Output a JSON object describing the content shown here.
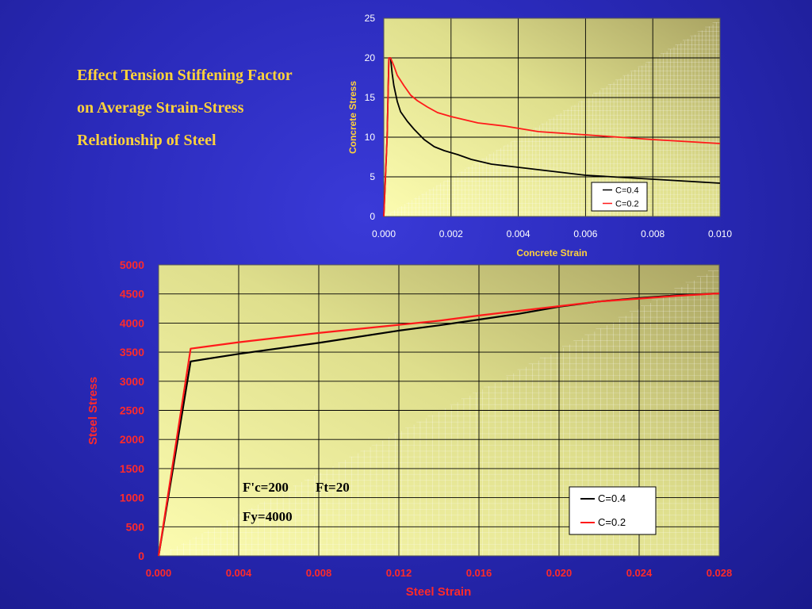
{
  "slide": {
    "title_lines": [
      "Effect Tension Stiffening Factor",
      "on Average Strain-Stress",
      "Relationship of Steel"
    ]
  },
  "chart_data": [
    {
      "type": "line",
      "xlabel": "Concrete Strain",
      "ylabel": "Concrete Stress",
      "xlim": [
        0,
        0.01
      ],
      "ylim": [
        0,
        25
      ],
      "x_ticks": [
        "0.000",
        "0.002",
        "0.004",
        "0.006",
        "0.008",
        "0.010"
      ],
      "y_ticks": [
        "0",
        "5",
        "10",
        "15",
        "20",
        "25"
      ],
      "grid": true,
      "legend_position": "bottom-right",
      "series": [
        {
          "name": "C=0.4",
          "color": "#000000",
          "points": [
            [
              0,
              0
            ],
            [
              0.0001,
              10
            ],
            [
              0.00015,
              20
            ],
            [
              0.0002,
              20
            ],
            [
              0.00025,
              18
            ],
            [
              0.0003,
              16.5
            ],
            [
              0.0004,
              14.5
            ],
            [
              0.0005,
              13.2
            ],
            [
              0.0007,
              12
            ],
            [
              0.0009,
              11
            ],
            [
              0.0012,
              9.7
            ],
            [
              0.0015,
              8.8
            ],
            [
              0.0018,
              8.3
            ],
            [
              0.0022,
              7.8
            ],
            [
              0.0026,
              7.2
            ],
            [
              0.0032,
              6.6
            ],
            [
              0.004,
              6.2
            ],
            [
              0.005,
              5.7
            ],
            [
              0.006,
              5.2
            ],
            [
              0.007,
              4.95
            ],
            [
              0.008,
              4.7
            ],
            [
              0.009,
              4.45
            ],
            [
              0.01,
              4.2
            ]
          ]
        },
        {
          "name": "C=0.2",
          "color": "#ff1a1a",
          "points": [
            [
              0,
              0
            ],
            [
              0.0001,
              10
            ],
            [
              0.00015,
              20
            ],
            [
              0.0002,
              20
            ],
            [
              0.0003,
              19
            ],
            [
              0.0004,
              17.8
            ],
            [
              0.0006,
              16.5
            ],
            [
              0.0008,
              15.3
            ],
            [
              0.001,
              14.6
            ],
            [
              0.0013,
              13.8
            ],
            [
              0.0016,
              13.1
            ],
            [
              0.002,
              12.6
            ],
            [
              0.0028,
              11.8
            ],
            [
              0.0036,
              11.4
            ],
            [
              0.0046,
              10.7
            ],
            [
              0.006,
              10.3
            ],
            [
              0.007,
              10
            ],
            [
              0.008,
              9.7
            ],
            [
              0.009,
              9.45
            ],
            [
              0.01,
              9.2
            ]
          ]
        }
      ]
    },
    {
      "type": "line",
      "xlabel": "Steel Strain",
      "ylabel": "Steel Stress",
      "xlim": [
        0,
        0.028
      ],
      "ylim": [
        0,
        5000
      ],
      "x_ticks": [
        "0.000",
        "0.004",
        "0.008",
        "0.012",
        "0.016",
        "0.020",
        "0.024",
        "0.028"
      ],
      "y_ticks": [
        "0",
        "500",
        "1000",
        "1500",
        "2000",
        "2500",
        "3000",
        "3500",
        "4000",
        "4500",
        "5000"
      ],
      "grid": true,
      "legend_position": "bottom-right",
      "annotations": [
        "F'c=200",
        "Ft=20",
        "Fy=4000"
      ],
      "series": [
        {
          "name": "C=0.4",
          "color": "#000000",
          "points": [
            [
              0,
              0
            ],
            [
              0.0016,
              3340
            ],
            [
              0.004,
              3470
            ],
            [
              0.008,
              3660
            ],
            [
              0.012,
              3870
            ],
            [
              0.014,
              3960
            ],
            [
              0.016,
              4060
            ],
            [
              0.018,
              4160
            ],
            [
              0.02,
              4280
            ],
            [
              0.022,
              4370
            ],
            [
              0.024,
              4430
            ],
            [
              0.026,
              4480
            ],
            [
              0.028,
              4510
            ]
          ]
        },
        {
          "name": "C=0.2",
          "color": "#ff1a1a",
          "points": [
            [
              0,
              0
            ],
            [
              0.0016,
              3560
            ],
            [
              0.004,
              3670
            ],
            [
              0.008,
              3830
            ],
            [
              0.012,
              3970
            ],
            [
              0.014,
              4040
            ],
            [
              0.016,
              4130
            ],
            [
              0.018,
              4210
            ],
            [
              0.02,
              4290
            ],
            [
              0.022,
              4370
            ],
            [
              0.024,
              4420
            ],
            [
              0.026,
              4470
            ],
            [
              0.028,
              4510
            ]
          ]
        }
      ]
    }
  ]
}
